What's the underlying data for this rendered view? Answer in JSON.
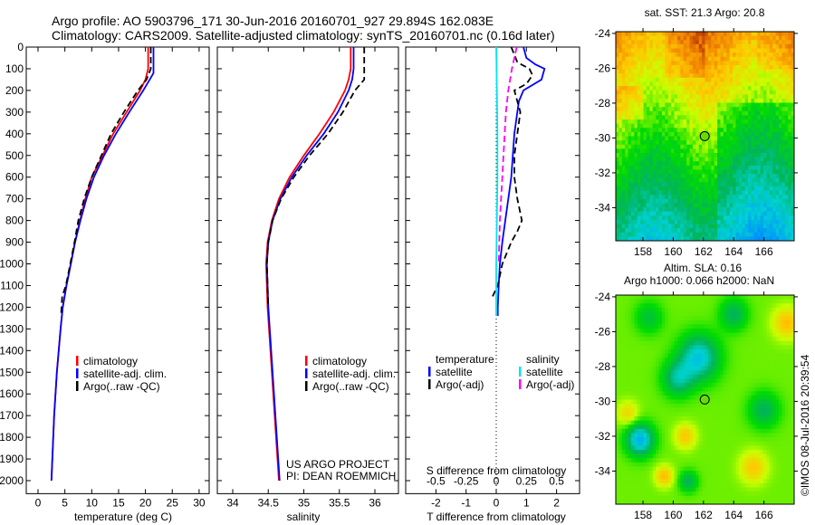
{
  "title_line1": "Argo profile: AO 5903796_171 30-Jun-2016 20160701_927 29.894S 162.083E",
  "title_line2": "Climatology: CARS2009. Satellite-adjusted climatology: synTS_20160701.nc (0.16d later)",
  "colors": {
    "climatology": "#ff0000",
    "satellite": "#0000ff",
    "argo": "#000000",
    "s_satellite": "#00e5ee",
    "s_argo": "#ff00ff"
  },
  "chart_data": [
    {
      "type": "line",
      "name": "temperature",
      "xlabel": "temperature (deg C)",
      "ylabel": "",
      "xlim": [
        -2,
        32
      ],
      "ylim": [
        2060,
        0
      ],
      "xticks": [
        0,
        5,
        10,
        15,
        20,
        25,
        30
      ],
      "yticks": [
        0,
        100,
        200,
        300,
        400,
        500,
        600,
        700,
        800,
        900,
        1000,
        1100,
        1200,
        1300,
        1400,
        1500,
        1600,
        1700,
        1800,
        1900,
        2000
      ],
      "legend": [
        "climatology",
        "satellite-adj. clim.",
        "Argo(..raw -QC)"
      ],
      "legend_position": "bottom-center",
      "series": [
        {
          "name": "climatology",
          "depth": [
            0,
            100,
            150,
            200,
            300,
            400,
            500,
            600,
            700,
            800,
            900,
            1000,
            1100,
            1200,
            1300,
            1500,
            1700,
            2000
          ],
          "values": [
            20.5,
            20.5,
            20,
            19,
            16.5,
            14,
            12,
            10,
            8.8,
            7.8,
            6.9,
            6.1,
            5.3,
            4.6,
            4.2,
            3.5,
            3.0,
            2.5
          ]
        },
        {
          "name": "satellite-adj. clim.",
          "depth": [
            0,
            120,
            150,
            200,
            300,
            400,
            500,
            600,
            700,
            800,
            900,
            1000,
            1100,
            1200,
            1300,
            1500,
            1700,
            2000
          ],
          "values": [
            21.5,
            21.5,
            20.8,
            19.6,
            17,
            14.5,
            12.3,
            10.4,
            9,
            7.9,
            6.9,
            6.1,
            5.3,
            4.6,
            4.2,
            3.5,
            3.0,
            2.5
          ]
        },
        {
          "name": "Argo(..raw -QC)",
          "depth": [
            0,
            100,
            150,
            200,
            300,
            400,
            500,
            600,
            700,
            800,
            900,
            1000,
            1100,
            1150,
            1230
          ],
          "values": [
            21,
            21,
            20.2,
            18.6,
            16,
            13.6,
            11.8,
            10,
            8.6,
            7.5,
            6.8,
            6.0,
            5.2,
            4.5,
            4.3
          ]
        }
      ]
    },
    {
      "type": "line",
      "name": "salinity",
      "xlabel": "salinity",
      "xlim": [
        33.8,
        36.15
      ],
      "ylim": [
        2060,
        0
      ],
      "xticks": [
        34,
        34.5,
        35,
        35.5,
        36
      ],
      "legend": [
        "climatology",
        "satellite-adj. clim.",
        "Argo(..raw -QC)"
      ],
      "legend_position": "bottom-center",
      "annotation": [
        "US ARGO PROJECT",
        "PI: DEAN ROEMMICH"
      ],
      "series": [
        {
          "name": "climatology",
          "depth": [
            0,
            100,
            150,
            200,
            300,
            400,
            500,
            600,
            700,
            800,
            900,
            1000,
            1200,
            1500,
            2000
          ],
          "values": [
            35.66,
            35.66,
            35.63,
            35.58,
            35.42,
            35.22,
            35.0,
            34.8,
            34.65,
            34.55,
            34.49,
            34.47,
            34.49,
            34.55,
            34.65
          ]
        },
        {
          "name": "satellite-adj. clim.",
          "depth": [
            0,
            100,
            150,
            200,
            300,
            400,
            500,
            600,
            700,
            800,
            900,
            1000,
            1200,
            1500,
            2000
          ],
          "values": [
            35.7,
            35.7,
            35.68,
            35.63,
            35.48,
            35.28,
            35.04,
            34.83,
            34.67,
            34.56,
            34.5,
            34.48,
            34.5,
            34.56,
            34.66
          ]
        },
        {
          "name": "Argo(..raw -QC)",
          "depth": [
            0,
            150,
            200,
            300,
            400,
            500,
            600,
            700,
            800,
            900,
            1000,
            1100,
            1200
          ],
          "values": [
            35.85,
            35.85,
            35.72,
            35.55,
            35.34,
            35.08,
            34.86,
            34.68,
            34.56,
            34.5,
            34.48,
            34.49,
            34.5
          ]
        }
      ]
    },
    {
      "type": "line",
      "name": "difference",
      "xlabel": "T difference from climatology",
      "x2label": "S difference from climatology",
      "xlim": [
        -3,
        2.8
      ],
      "ylim": [
        2060,
        0
      ],
      "xticks": [
        -2,
        -1,
        0,
        1,
        2
      ],
      "x2ticks": [
        -0.5,
        -0.25,
        0,
        0.25,
        0.5
      ],
      "x2tick_labels": [
        "-0.5",
        "-0.25",
        "0",
        "0.25",
        "0.5"
      ],
      "legend_headers": [
        "temperature",
        "salinity"
      ],
      "legend": [
        "satellite",
        "Argo(-adj)",
        "satellite",
        "Argo(-adj)"
      ],
      "legend_position": "bottom-center",
      "series": [
        {
          "name": "T satellite",
          "axis": "T",
          "depth": [
            0,
            50,
            80,
            100,
            150,
            200,
            250,
            300,
            400,
            500,
            600,
            700,
            800,
            900,
            1000,
            1100,
            1200,
            1240
          ],
          "values": [
            0.9,
            1.0,
            1.3,
            1.6,
            1.5,
            0.9,
            0.75,
            0.7,
            0.6,
            0.55,
            0.5,
            0.4,
            0.3,
            0.2,
            0.12,
            0.08,
            0.05,
            0.05
          ]
        },
        {
          "name": "T Argo(-adj)",
          "axis": "T",
          "depth": [
            0,
            70,
            100,
            130,
            170,
            200,
            250,
            300,
            400,
            500,
            600,
            700,
            800,
            850,
            900,
            1000,
            1100,
            1150
          ],
          "values": [
            0.5,
            0.7,
            1.1,
            1.2,
            1.0,
            0.6,
            0.7,
            0.8,
            0.7,
            0.6,
            0.6,
            0.7,
            0.85,
            0.7,
            0.5,
            0.2,
            0.05,
            -0.12
          ]
        },
        {
          "name": "S satellite",
          "axis": "S",
          "depth": [
            0,
            200,
            400,
            600,
            800,
            1000,
            1240
          ],
          "values": [
            0.0,
            0.005,
            0.01,
            0.01,
            0.005,
            0.0,
            0.0
          ]
        },
        {
          "name": "S Argo(-adj)",
          "axis": "S",
          "depth": [
            0,
            50,
            100,
            200,
            300,
            400,
            500,
            600,
            800,
            1000
          ],
          "values": [
            0.17,
            0.15,
            0.13,
            0.1,
            0.08,
            0.07,
            0.06,
            0.05,
            0.03,
            0.02
          ]
        }
      ]
    },
    {
      "type": "heatmap",
      "name": "sst-map",
      "title": "sat. SST: 21.3 Argo: 20.8",
      "xlim": [
        156.2,
        168
      ],
      "ylim": [
        -35.9,
        -23.9
      ],
      "xticks": [
        158,
        160,
        162,
        164,
        166
      ],
      "yticks": [
        -24,
        -26,
        -28,
        -30,
        -32,
        -34
      ],
      "marker": {
        "lon": 162.083,
        "lat": -29.894
      }
    },
    {
      "type": "heatmap",
      "name": "sla-map",
      "title": "Altim. SLA: 0.16",
      "subtitle": "Argo h1000: 0.066 h2000: NaN",
      "xlim": [
        156.2,
        168
      ],
      "ylim": [
        -35.9,
        -23.9
      ],
      "xticks": [
        158,
        160,
        162,
        164,
        166
      ],
      "yticks": [
        -24,
        -26,
        -28,
        -30,
        -32,
        -34
      ],
      "marker": {
        "lon": 162.083,
        "lat": -29.894
      }
    }
  ],
  "credit": "©IMOS 08-Jul-2016 20:39:54"
}
